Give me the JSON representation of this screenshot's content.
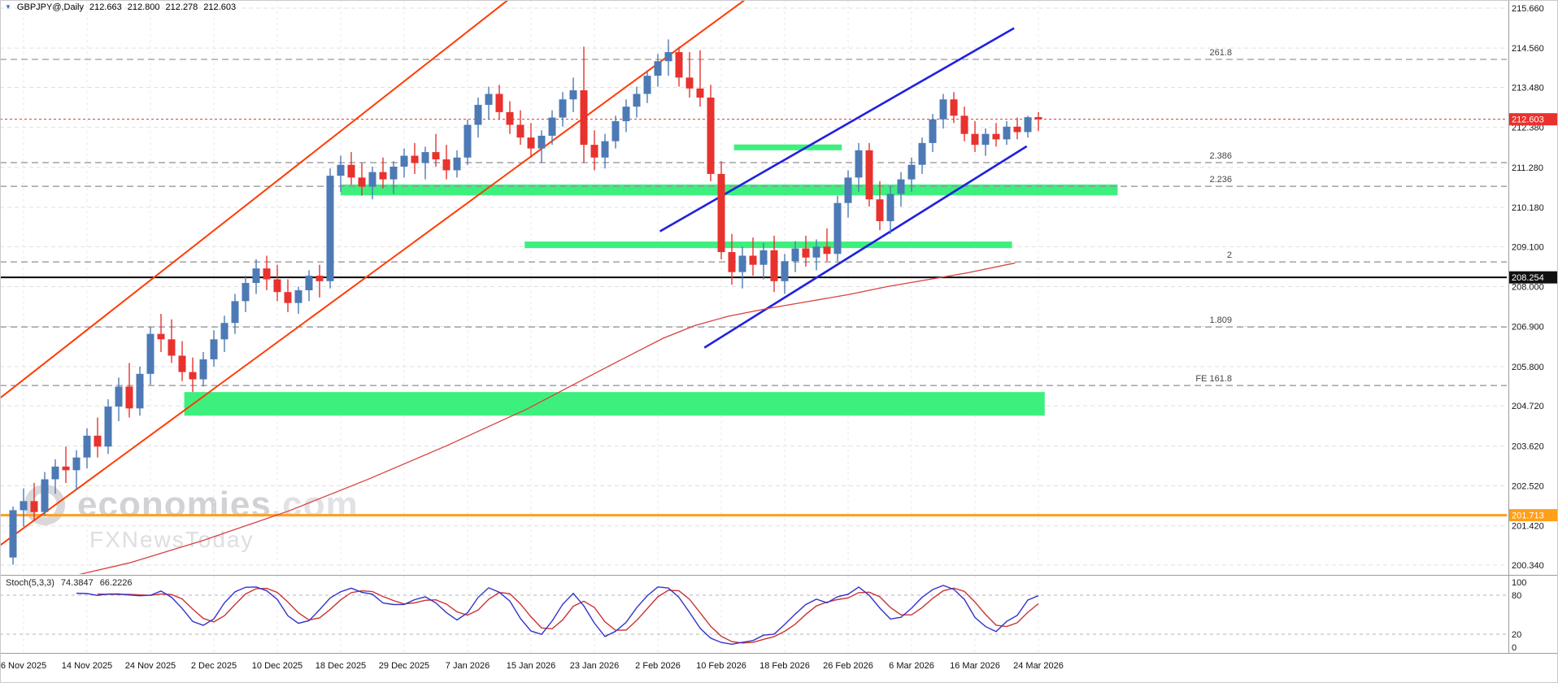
{
  "header": {
    "symbol": "GBPJPY@,Daily",
    "open": "212.663",
    "high": "212.800",
    "low": "212.278",
    "close": "212.603"
  },
  "watermark": {
    "brand": "economies",
    "brand_suffix": ".com",
    "subtitle": "FXNewsToday"
  },
  "stoch": {
    "label": "Stoch(5,3,3)",
    "main_value": "74.3847",
    "signal_value": "66.2226",
    "levels": [
      "100",
      "80",
      "20",
      "0"
    ]
  },
  "colors": {
    "bull": "#4d7ab5",
    "bear": "#e8322e",
    "zone_green": "#3df07e",
    "channel_red": "#ff3c00",
    "channel_blue": "#2020e0",
    "ma_red": "#d94040",
    "orange_line": "#ff9f1a",
    "stoch_main": "#3333cc",
    "stoch_signal": "#cc3333",
    "badge_black": "#101010",
    "grid": "#dfe0e4"
  },
  "chart_data": {
    "type": "candlestick",
    "title": "GBPJPY@,Daily",
    "symbol": "GBPJPY",
    "timeframe": "Daily",
    "ylim": [
      200.34,
      215.66
    ],
    "grid": "on",
    "price_ticks": [
      "215.660",
      "214.560",
      "213.480",
      "212.380",
      "211.280",
      "210.180",
      "209.100",
      "208.000",
      "206.900",
      "205.800",
      "204.720",
      "203.620",
      "202.520",
      "201.420",
      "200.340"
    ],
    "date_ticks": [
      {
        "i": 1,
        "label": "6 Nov 2025"
      },
      {
        "i": 7,
        "label": "14 Nov 2025"
      },
      {
        "i": 13,
        "label": "24 Nov 2025"
      },
      {
        "i": 19,
        "label": "2 Dec 2025"
      },
      {
        "i": 25,
        "label": "10 Dec 2025"
      },
      {
        "i": 31,
        "label": "18 Dec 2025"
      },
      {
        "i": 37,
        "label": "29 Dec 2025"
      },
      {
        "i": 43,
        "label": "7 Jan 2026"
      },
      {
        "i": 49,
        "label": "15 Jan 2026"
      },
      {
        "i": 55,
        "label": "23 Jan 2026"
      },
      {
        "i": 61,
        "label": "2 Feb 2026"
      },
      {
        "i": 67,
        "label": "10 Feb 2026"
      },
      {
        "i": 73,
        "label": "18 Feb 2026"
      },
      {
        "i": 79,
        "label": "26 Feb 2026"
      },
      {
        "i": 85,
        "label": "6 Mar 2026"
      },
      {
        "i": 91,
        "label": "16 Mar 2026"
      },
      {
        "i": 97,
        "label": "24 Mar 2026"
      }
    ],
    "last_price": 212.603,
    "hlines": [
      {
        "price": 208.254,
        "label": "208.254",
        "color": "black",
        "style": "solid"
      },
      {
        "price": 201.713,
        "label": "201.713",
        "color": "orange",
        "style": "solid"
      }
    ],
    "fib_levels": [
      {
        "label": "261.8",
        "price": 214.25
      },
      {
        "label": "2.386",
        "price": 211.41
      },
      {
        "label": "2.236",
        "price": 210.76
      },
      {
        "label": "2",
        "price": 208.68
      },
      {
        "label": "1.809",
        "price": 206.89
      },
      {
        "label": "FE 161.8",
        "price": 205.28
      }
    ],
    "zones": [
      {
        "i0": 16.2,
        "i1": 97.6,
        "p0": 204.45,
        "p1": 205.1
      },
      {
        "i0": 31.0,
        "i1": 104.5,
        "p0": 210.51,
        "p1": 210.81
      },
      {
        "i0": 48.4,
        "i1": 94.5,
        "p0": 209.06,
        "p1": 209.24
      },
      {
        "i0": 68.2,
        "i1": 78.4,
        "p0": 211.75,
        "p1": 211.91
      }
    ],
    "channels": {
      "red": [
        {
          "i0": -1.2,
          "p0": 204.94,
          "i1": 46.8,
          "p1": 215.88
        },
        {
          "i0": -1.2,
          "p0": 200.89,
          "i1": 69.2,
          "p1": 215.88
        }
      ],
      "blue": [
        {
          "i0": 61.2,
          "p0": 209.52,
          "i1": 94.7,
          "p1": 215.11
        },
        {
          "i0": 65.4,
          "p0": 206.32,
          "i1": 95.9,
          "p1": 211.86
        }
      ]
    },
    "ma_line": [
      [
        4,
        199.93
      ],
      [
        11,
        200.4
      ],
      [
        18,
        201.02
      ],
      [
        26,
        201.82
      ],
      [
        33.5,
        202.69
      ],
      [
        41,
        203.62
      ],
      [
        48.6,
        204.63
      ],
      [
        56,
        205.76
      ],
      [
        61.5,
        206.58
      ],
      [
        64.5,
        206.93
      ],
      [
        67.6,
        207.18
      ],
      [
        71.4,
        207.4
      ],
      [
        75.2,
        207.59
      ],
      [
        79,
        207.78
      ],
      [
        82.7,
        208.0
      ],
      [
        86.5,
        208.19
      ],
      [
        90.3,
        208.38
      ],
      [
        94.8,
        208.65
      ]
    ],
    "stoch_dashed_levels": [
      80,
      20
    ],
    "candles": [
      [
        200.55,
        201.95,
        200.35,
        201.85
      ],
      [
        201.85,
        202.45,
        201.4,
        202.1
      ],
      [
        202.1,
        202.6,
        201.55,
        201.8
      ],
      [
        201.8,
        202.9,
        201.7,
        202.7
      ],
      [
        202.7,
        203.25,
        202.3,
        203.05
      ],
      [
        203.05,
        203.6,
        202.6,
        202.95
      ],
      [
        202.95,
        203.5,
        202.4,
        203.3
      ],
      [
        203.3,
        204.1,
        203.0,
        203.9
      ],
      [
        203.9,
        204.4,
        203.3,
        203.6
      ],
      [
        203.6,
        204.9,
        203.4,
        204.7
      ],
      [
        204.7,
        205.5,
        204.3,
        205.25
      ],
      [
        205.25,
        205.9,
        204.4,
        204.65
      ],
      [
        204.65,
        205.8,
        204.45,
        205.6
      ],
      [
        205.6,
        206.9,
        205.3,
        206.7
      ],
      [
        206.7,
        207.25,
        206.2,
        206.55
      ],
      [
        206.55,
        207.1,
        205.9,
        206.1
      ],
      [
        206.1,
        206.5,
        205.4,
        205.65
      ],
      [
        205.65,
        206.05,
        205.1,
        205.45
      ],
      [
        205.45,
        206.2,
        205.25,
        206.0
      ],
      [
        206.0,
        206.8,
        205.8,
        206.55
      ],
      [
        206.55,
        207.2,
        206.2,
        207.0
      ],
      [
        207.0,
        207.8,
        206.7,
        207.6
      ],
      [
        207.6,
        208.3,
        207.3,
        208.1
      ],
      [
        208.1,
        208.75,
        207.8,
        208.5
      ],
      [
        208.5,
        208.85,
        207.9,
        208.2
      ],
      [
        208.2,
        208.6,
        207.6,
        207.85
      ],
      [
        207.85,
        208.2,
        207.3,
        207.55
      ],
      [
        207.55,
        208.0,
        207.25,
        207.9
      ],
      [
        207.9,
        208.45,
        207.6,
        208.3
      ],
      [
        208.3,
        208.6,
        207.7,
        208.15
      ],
      [
        208.15,
        211.25,
        207.95,
        211.05
      ],
      [
        211.05,
        211.6,
        210.6,
        211.35
      ],
      [
        211.35,
        211.7,
        210.8,
        211.0
      ],
      [
        211.0,
        211.4,
        210.5,
        210.75
      ],
      [
        210.75,
        211.3,
        210.4,
        211.15
      ],
      [
        211.15,
        211.55,
        210.7,
        210.95
      ],
      [
        210.95,
        211.45,
        210.55,
        211.3
      ],
      [
        211.3,
        211.8,
        211.0,
        211.6
      ],
      [
        211.6,
        211.95,
        211.1,
        211.4
      ],
      [
        211.4,
        211.85,
        210.95,
        211.7
      ],
      [
        211.7,
        212.2,
        211.3,
        211.5
      ],
      [
        211.5,
        211.9,
        210.95,
        211.2
      ],
      [
        211.2,
        211.75,
        211.0,
        211.55
      ],
      [
        211.55,
        212.6,
        211.35,
        212.45
      ],
      [
        212.45,
        213.2,
        212.1,
        213.0
      ],
      [
        213.0,
        213.5,
        212.6,
        213.3
      ],
      [
        213.3,
        213.55,
        212.6,
        212.8
      ],
      [
        212.8,
        213.1,
        212.2,
        212.45
      ],
      [
        212.45,
        212.85,
        211.9,
        212.1
      ],
      [
        212.1,
        212.5,
        211.55,
        211.8
      ],
      [
        211.8,
        212.3,
        211.4,
        212.15
      ],
      [
        212.15,
        212.85,
        211.9,
        212.65
      ],
      [
        212.65,
        213.35,
        212.4,
        213.15
      ],
      [
        213.15,
        213.75,
        212.8,
        213.4
      ],
      [
        213.4,
        214.6,
        211.4,
        211.9
      ],
      [
        211.9,
        212.3,
        211.2,
        211.55
      ],
      [
        211.55,
        212.2,
        211.25,
        212.0
      ],
      [
        212.0,
        212.7,
        211.8,
        212.55
      ],
      [
        212.55,
        213.15,
        212.25,
        212.95
      ],
      [
        212.95,
        213.5,
        212.65,
        213.3
      ],
      [
        213.3,
        213.95,
        213.05,
        213.8
      ],
      [
        213.8,
        214.4,
        213.5,
        214.2
      ],
      [
        214.2,
        214.8,
        213.8,
        214.45
      ],
      [
        214.45,
        214.6,
        213.5,
        213.75
      ],
      [
        213.75,
        214.45,
        213.2,
        213.45
      ],
      [
        213.45,
        214.5,
        212.95,
        213.2
      ],
      [
        213.2,
        213.55,
        210.9,
        211.1
      ],
      [
        211.1,
        211.45,
        208.75,
        208.95
      ],
      [
        208.95,
        209.45,
        208.05,
        208.4
      ],
      [
        208.4,
        209.1,
        207.95,
        208.85
      ],
      [
        208.85,
        209.35,
        208.3,
        208.6
      ],
      [
        208.6,
        209.2,
        208.2,
        209.0
      ],
      [
        209.0,
        209.4,
        207.85,
        208.15
      ],
      [
        208.15,
        208.9,
        207.8,
        208.7
      ],
      [
        208.7,
        209.25,
        208.4,
        209.05
      ],
      [
        209.05,
        209.4,
        208.55,
        208.8
      ],
      [
        208.8,
        209.3,
        208.45,
        209.1
      ],
      [
        209.1,
        209.6,
        208.7,
        208.9
      ],
      [
        208.9,
        210.5,
        208.7,
        210.3
      ],
      [
        210.3,
        211.2,
        209.9,
        211.0
      ],
      [
        211.0,
        211.95,
        210.6,
        211.75
      ],
      [
        211.75,
        211.95,
        210.2,
        210.4
      ],
      [
        210.4,
        210.9,
        209.55,
        209.8
      ],
      [
        209.8,
        210.75,
        209.45,
        210.55
      ],
      [
        210.55,
        211.15,
        210.2,
        210.95
      ],
      [
        210.95,
        211.55,
        210.6,
        211.35
      ],
      [
        211.35,
        212.1,
        211.1,
        211.95
      ],
      [
        211.95,
        212.75,
        211.7,
        212.6
      ],
      [
        212.6,
        213.3,
        212.35,
        213.15
      ],
      [
        213.15,
        213.35,
        212.5,
        212.7
      ],
      [
        212.7,
        212.95,
        212.0,
        212.2
      ],
      [
        212.2,
        212.55,
        211.7,
        211.9
      ],
      [
        211.9,
        212.35,
        211.6,
        212.2
      ],
      [
        212.2,
        212.5,
        211.85,
        212.05
      ],
      [
        212.05,
        212.55,
        211.9,
        212.4
      ],
      [
        212.4,
        212.65,
        212.05,
        212.25
      ],
      [
        212.25,
        212.7,
        212.1,
        212.66
      ],
      [
        212.663,
        212.8,
        212.278,
        212.603
      ]
    ]
  }
}
